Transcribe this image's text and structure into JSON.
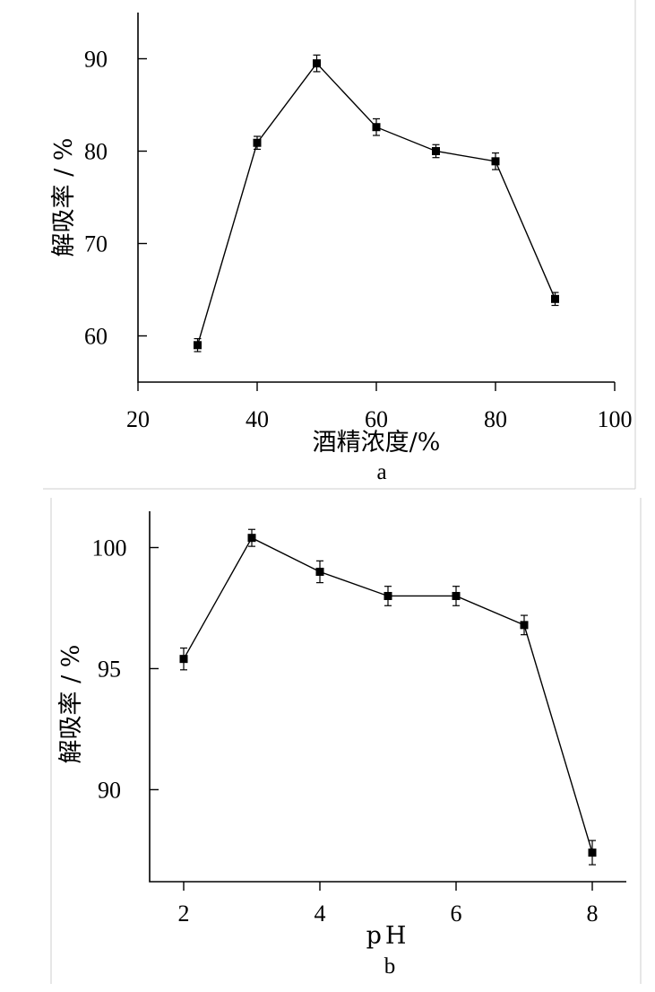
{
  "chart_data": [
    {
      "panel": "a",
      "type": "line",
      "xlabel": "酒精浓度/%",
      "ylabel": "解吸率 / %",
      "xlim": [
        20,
        100
      ],
      "ylim": [
        55,
        95
      ],
      "xticks": [
        20,
        40,
        60,
        80,
        100
      ],
      "yticks": [
        60,
        70,
        80,
        90
      ],
      "x": [
        30,
        40,
        50,
        60,
        70,
        80,
        90
      ],
      "y": [
        59.0,
        80.9,
        89.5,
        82.6,
        80.0,
        78.9,
        64.0
      ],
      "yerr": [
        0.7,
        0.7,
        0.9,
        0.9,
        0.7,
        0.9,
        0.7
      ],
      "marker": "square",
      "grid": false
    },
    {
      "panel": "b",
      "type": "line",
      "xlabel": "pH",
      "ylabel": "解吸率 / %",
      "xlim": [
        1.5,
        8.5
      ],
      "ylim": [
        86.2,
        101.5
      ],
      "xticks": [
        2,
        4,
        6,
        8
      ],
      "yticks": [
        90,
        95,
        100
      ],
      "x": [
        2,
        3,
        4,
        5,
        6,
        7,
        8
      ],
      "y": [
        95.4,
        100.4,
        99.0,
        98.0,
        98.0,
        96.8,
        87.4
      ],
      "yerr": [
        0.45,
        0.35,
        0.45,
        0.4,
        0.4,
        0.4,
        0.5
      ],
      "marker": "square",
      "grid": false
    }
  ]
}
